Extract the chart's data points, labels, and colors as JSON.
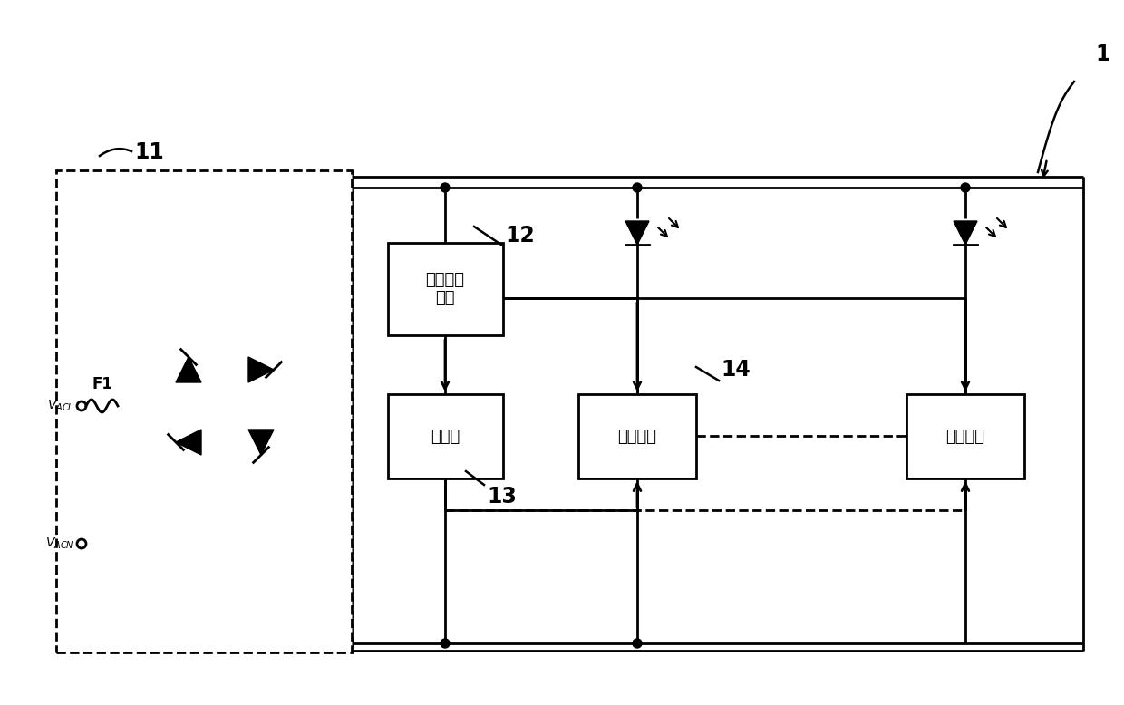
{
  "bg_color": "#ffffff",
  "labels": {
    "v_acl": "$V_{ACL}$",
    "v_acn": "$V_{ACN}$",
    "f1": "F1",
    "aux": "辅助供电\n模块",
    "mcu": "单片机",
    "drv1": "驱动模块",
    "drv2": "驱动模块",
    "n1": "1",
    "n11": "11",
    "n12": "12",
    "n13": "13",
    "n14": "14"
  }
}
